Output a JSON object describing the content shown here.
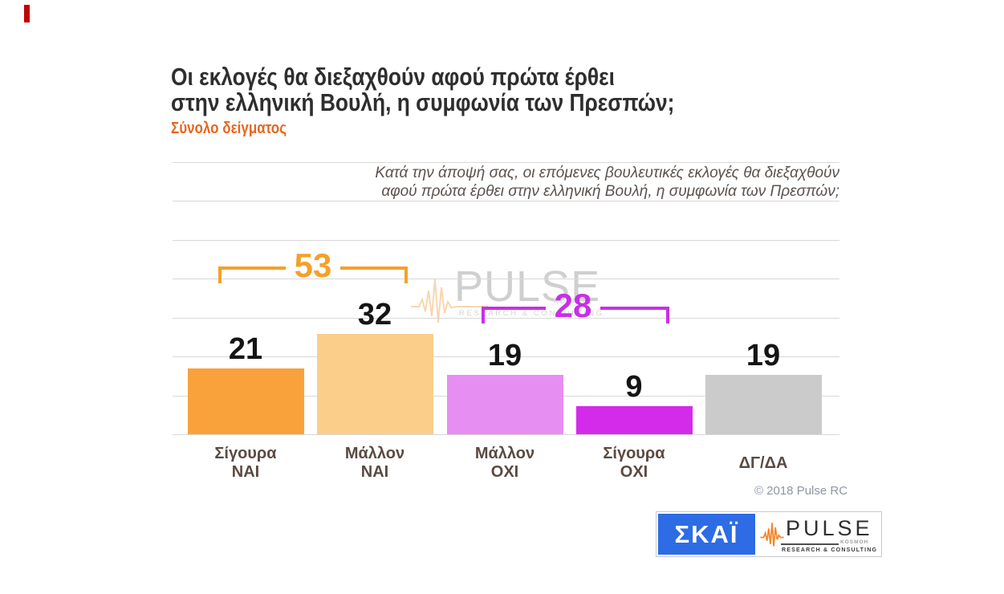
{
  "marker": {
    "color": "#C00000"
  },
  "header": {
    "title_line1": "Οι εκλογές θα διεξαχθούν αφού πρώτα έρθει",
    "title_line2": "στην ελληνική Βουλή, η συμφωνία των Πρεσπών;",
    "subtitle": "Σύνολο δείγματος",
    "subtitle_color": "#E8651C"
  },
  "question": {
    "line1": "Κατά την άποψή σας, οι επόμενες βουλευτικές εκλογές θα διεξαχθούν",
    "line2": "αφού πρώτα έρθει στην ελληνική Βουλή, η συμφωνία των Πρεσπών;"
  },
  "chart_data": {
    "type": "bar",
    "title": "Οι εκλογές θα διεξαχθούν αφού πρώτα έρθει στην ελληνική Βουλή, η συμφωνία των Πρεσπών;",
    "subtitle": "Σύνολο δείγματος",
    "question": "Κατά την άποψή σας, οι επόμενες βουλευτικές εκλογές θα διεξαχθούν αφού πρώτα έρθει στην ελληνική Βουλή, η συμφωνία των Πρεσπών;",
    "categories": [
      "Σίγουρα ΝΑΙ",
      "Μάλλον ΝΑΙ",
      "Μάλλον ΟΧΙ",
      "Σίγουρα ΟΧΙ",
      "ΔΓ/ΔΑ"
    ],
    "values": [
      21,
      32,
      19,
      9,
      19
    ],
    "bar_colors": [
      "#F9A23B",
      "#FBCE8A",
      "#E78EF2",
      "#D42BEB",
      "#CBCBCB"
    ],
    "value_label_color": "#151515",
    "category_label_color": "#5B4A42",
    "annotations": [
      {
        "label": "53",
        "covers": [
          "Σίγουρα ΝΑΙ",
          "Μάλλον ΝΑΙ"
        ],
        "color": "#F5A02B"
      },
      {
        "label": "28",
        "covers": [
          "Μάλλον ΟΧΙ",
          "Σίγουρα ΟΧΙ"
        ],
        "color": "#C82FE6"
      }
    ],
    "xlabel": "",
    "ylabel": "",
    "ylim": [
      0,
      87
    ],
    "grid": true,
    "gridline_color": "#D8D8D8",
    "legend": false
  },
  "watermark": {
    "brand": "PULSE",
    "tagline": "RESEARCH & CONSULTING",
    "mark": "KOSMOH"
  },
  "footer": {
    "copyright": "© 2018 Pulse RC"
  },
  "logos": {
    "skai_text": "ΣΚΑΪ",
    "skai_bg": "#2D6CE5",
    "pulse_brand": "PULSE",
    "pulse_tagline": "RESEARCH & CONSULTING",
    "pulse_mark": "KOSMOH"
  }
}
